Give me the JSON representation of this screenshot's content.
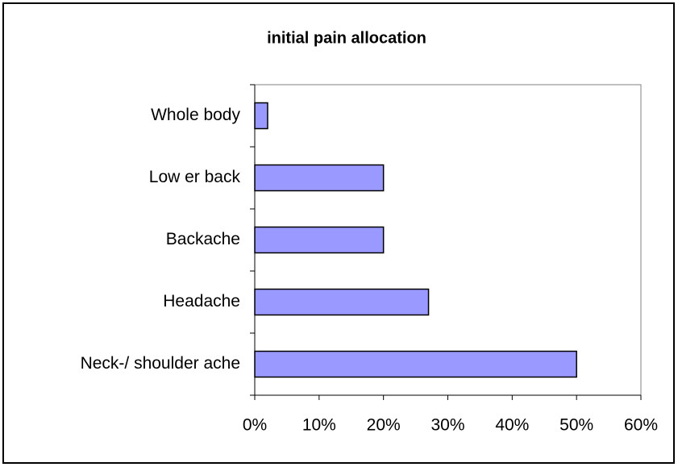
{
  "chart_data": {
    "type": "bar",
    "orientation": "horizontal",
    "title": "initial pain allocation",
    "categories": [
      "Whole body",
      "Low er back",
      "Backache",
      "Headache",
      "Neck-/ shoulder ache"
    ],
    "values": [
      2,
      20,
      20,
      27,
      50
    ],
    "color": "#9999ff",
    "xlim": [
      0,
      60
    ],
    "xticks": [
      {
        "value": 0,
        "label": "0%"
      },
      {
        "value": 10,
        "label": "10%"
      },
      {
        "value": 20,
        "label": "20%"
      },
      {
        "value": 30,
        "label": "30%"
      },
      {
        "value": 40,
        "label": "40%"
      },
      {
        "value": 50,
        "label": "50%"
      },
      {
        "value": 60,
        "label": "60%"
      }
    ],
    "grid": false
  }
}
